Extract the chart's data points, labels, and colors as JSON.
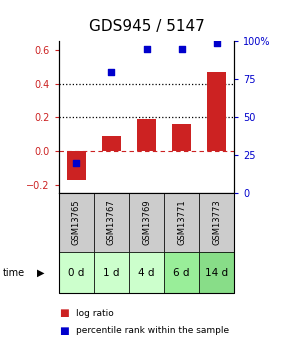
{
  "title": "GDS945 / 5147",
  "categories": [
    "GSM13765",
    "GSM13767",
    "GSM13769",
    "GSM13771",
    "GSM13773"
  ],
  "time_labels": [
    "0 d",
    "1 d",
    "4 d",
    "6 d",
    "14 d"
  ],
  "log_ratio": [
    -0.17,
    0.09,
    0.19,
    0.16,
    0.47
  ],
  "percentile_rank": [
    20,
    80,
    95,
    95,
    99
  ],
  "bar_color": "#cc2222",
  "dot_color": "#0000cc",
  "ylim_left": [
    -0.25,
    0.65
  ],
  "ylim_right": [
    0,
    100
  ],
  "yticks_left": [
    -0.2,
    0.0,
    0.2,
    0.4,
    0.6
  ],
  "yticks_right": [
    0,
    25,
    50,
    75,
    100
  ],
  "ytick_right_labels": [
    "0",
    "25",
    "50",
    "75",
    "100%"
  ],
  "hlines_dotted": [
    0.2,
    0.4
  ],
  "hline_dashed": 0.0,
  "bg_color_gsm": "#cccccc",
  "bg_color_time_0": "#ccffcc",
  "bg_color_time_1": "#ccffcc",
  "bg_color_time_2": "#ccffcc",
  "bg_color_time_3": "#99ee99",
  "bg_color_time_4": "#88dd88",
  "title_fontsize": 11,
  "legend_label_bar": "log ratio",
  "legend_label_dot": "percentile rank within the sample",
  "bar_width": 0.55
}
